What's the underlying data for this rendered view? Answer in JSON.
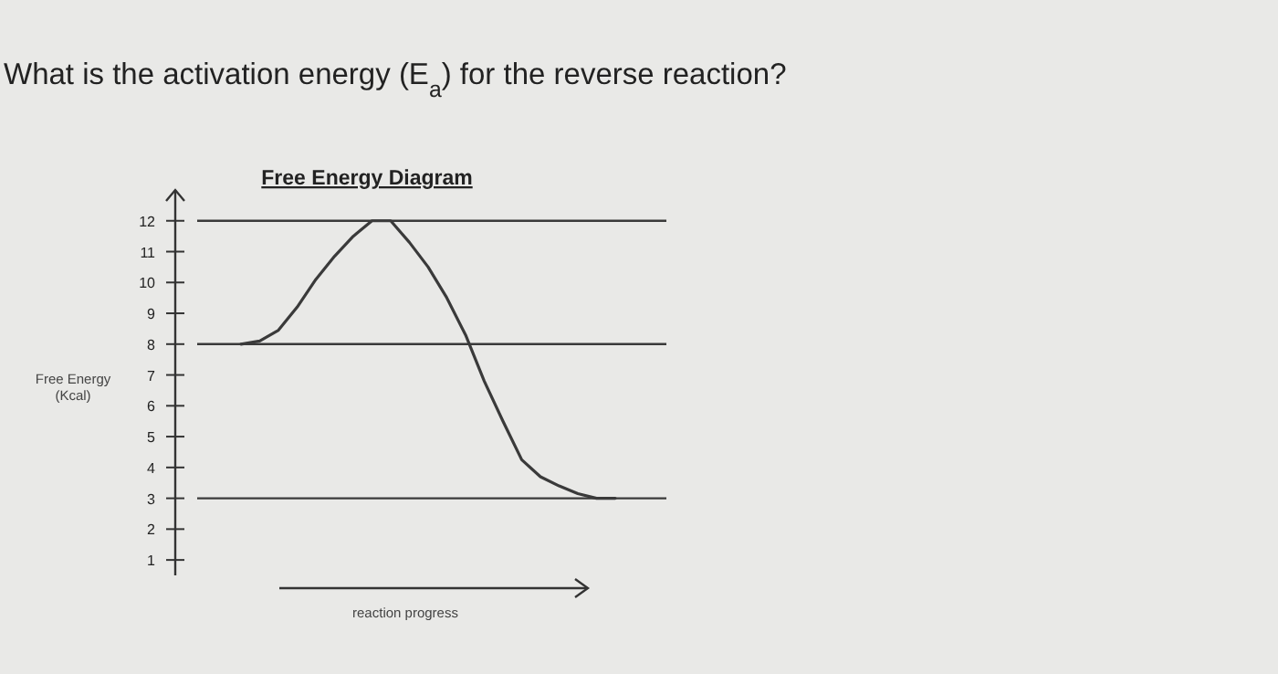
{
  "chart_data": {
    "type": "line",
    "title": "What is the activation energy (E$_{a}$) for the reverse reaction?",
    "subtitle": "Free Energy Diagram",
    "xlabel": "reaction progress",
    "ylabel": "Free Energy (Kcal)",
    "categories": [
      null,
      null,
      null,
      null,
      null,
      null,
      null,
      null,
      null,
      null,
      null,
      null,
      null,
      null,
      null,
      null,
      null,
      null,
      null,
      null,
      null
    ],
    "series": [
      {
        "color": "#3a3a3a",
        "values": [
          8.0,
          8.1,
          8.45,
          9.2,
          10.1,
          10.85,
          11.5,
          12.0,
          12.0,
          11.3,
          10.5,
          9.5,
          8.3,
          6.8,
          5.5,
          4.25,
          3.7,
          3.4,
          3.15,
          3.0,
          3.0
        ]
      }
    ],
    "ylim": [
      0.5,
      13
    ],
    "yticks": [
      1,
      2,
      3,
      4,
      5,
      6,
      7,
      8,
      9,
      10,
      11,
      12
    ],
    "ref_lines": [
      {
        "axis": "y",
        "value": 12,
        "color": "#3a3a3a"
      },
      {
        "axis": "y",
        "value": 8,
        "color": "#3a3a3a"
      },
      {
        "axis": "y",
        "value": 3,
        "color": "#3a3a3a"
      }
    ],
    "grid": false,
    "marker": "none",
    "line_style": "solid"
  }
}
